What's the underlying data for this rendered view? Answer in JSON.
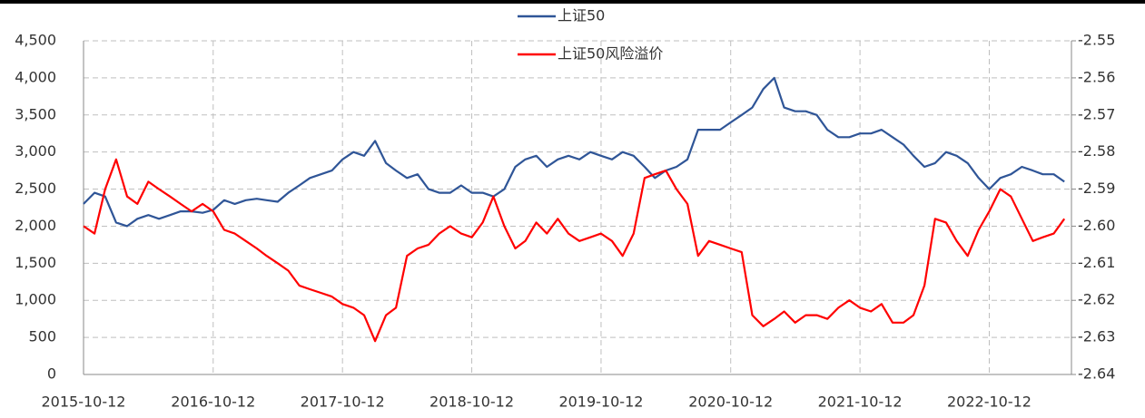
{
  "chart_data": {
    "type": "line",
    "x": [
      "2015-10-12",
      "2015-11-12",
      "2015-12-12",
      "2016-01-12",
      "2016-02-12",
      "2016-03-12",
      "2016-04-12",
      "2016-05-12",
      "2016-06-12",
      "2016-07-12",
      "2016-08-12",
      "2016-09-12",
      "2016-10-12",
      "2016-11-12",
      "2016-12-12",
      "2017-01-12",
      "2017-02-12",
      "2017-03-12",
      "2017-04-12",
      "2017-05-12",
      "2017-06-12",
      "2017-07-12",
      "2017-08-12",
      "2017-09-12",
      "2017-10-12",
      "2017-11-12",
      "2017-12-12",
      "2018-01-12",
      "2018-02-12",
      "2018-03-12",
      "2018-04-12",
      "2018-05-12",
      "2018-06-12",
      "2018-07-12",
      "2018-08-12",
      "2018-09-12",
      "2018-10-12",
      "2018-11-12",
      "2018-12-12",
      "2019-01-12",
      "2019-02-12",
      "2019-03-12",
      "2019-04-12",
      "2019-05-12",
      "2019-06-12",
      "2019-07-12",
      "2019-08-12",
      "2019-09-12",
      "2019-10-12",
      "2019-11-12",
      "2019-12-12",
      "2020-01-12",
      "2020-02-12",
      "2020-03-12",
      "2020-04-12",
      "2020-05-12",
      "2020-06-12",
      "2020-07-12",
      "2020-08-12",
      "2020-09-12",
      "2020-10-12",
      "2020-11-12",
      "2020-12-12",
      "2021-01-12",
      "2021-02-12",
      "2021-03-12",
      "2021-04-12",
      "2021-05-12",
      "2021-06-12",
      "2021-07-12",
      "2021-08-12",
      "2021-09-12",
      "2021-10-12",
      "2021-11-12",
      "2021-12-12",
      "2022-01-12",
      "2022-02-12",
      "2022-03-12",
      "2022-04-12",
      "2022-05-12",
      "2022-06-12",
      "2022-07-12",
      "2022-08-12",
      "2022-09-12",
      "2022-10-12",
      "2022-11-12",
      "2022-12-12",
      "2023-01-12",
      "2023-02-12",
      "2023-03-12",
      "2023-04-12",
      "2023-05-12"
    ],
    "xlim": [
      "2015-10-12",
      "2023-06-01"
    ],
    "xticks": [
      "2015-10-12",
      "2016-10-12",
      "2017-10-12",
      "2018-10-12",
      "2019-10-12",
      "2020-10-12",
      "2021-10-12",
      "2022-10-12"
    ],
    "ylim": [
      0,
      4500
    ],
    "yticks": [
      0,
      500,
      {
        "value": 1000,
        "label": "1,000"
      },
      {
        "value": 1500,
        "label": "1,500"
      },
      {
        "value": 2000,
        "label": "2,000"
      },
      {
        "value": 2500,
        "label": "2,500"
      },
      {
        "value": 3000,
        "label": "3,000"
      },
      {
        "value": 3500,
        "label": "3,500"
      },
      {
        "value": 4000,
        "label": "4,000"
      },
      {
        "value": 4500,
        "label": "4,500"
      }
    ],
    "y2lim": [
      -2.64,
      -2.55
    ],
    "y2ticks": [
      -2.64,
      -2.63,
      -2.62,
      -2.61,
      {
        "value": -2.6,
        "label": "-2.60"
      },
      -2.59,
      -2.58,
      -2.57,
      -2.56,
      -2.55
    ],
    "grid": true,
    "legend": "top",
    "series": [
      {
        "name": "上证50",
        "color": "#2f5597",
        "values": [
          2300,
          2450,
          2400,
          2050,
          2000,
          2100,
          2150,
          2100,
          2150,
          2200,
          2200,
          2180,
          2220,
          2350,
          2300,
          2350,
          2370,
          2350,
          2330,
          2450,
          2550,
          2650,
          2700,
          2750,
          2900,
          3000,
          2950,
          3150,
          2850,
          2750,
          2650,
          2700,
          2500,
          2450,
          2450,
          2550,
          2450,
          2450,
          2400,
          2500,
          2800,
          2900,
          2950,
          2800,
          2900,
          2950,
          2900,
          3000,
          2950,
          2900,
          3000,
          2950,
          2800,
          2650,
          2750,
          2800,
          2900,
          3300,
          3300,
          3300,
          3400,
          3500,
          3600,
          3850,
          4000,
          3600,
          3550,
          3550,
          3500,
          3300,
          3200,
          3200,
          3250,
          3250,
          3300,
          3200,
          3100,
          2950,
          2800,
          2850,
          3000,
          2950,
          2850,
          2650,
          2500,
          2650,
          2700,
          2800,
          2750,
          2700,
          2700,
          2600
        ]
      },
      {
        "name": "上证50风险溢价",
        "color": "#ff0000",
        "axis": "y2",
        "values": [
          -2.6,
          -2.602,
          -2.59,
          -2.582,
          -2.592,
          -2.594,
          -2.588,
          -2.59,
          -2.592,
          -2.594,
          -2.596,
          -2.594,
          -2.596,
          -2.601,
          -2.602,
          -2.604,
          -2.606,
          -2.608,
          -2.61,
          -2.612,
          -2.616,
          -2.617,
          -2.618,
          -2.619,
          -2.621,
          -2.622,
          -2.624,
          -2.631,
          -2.624,
          -2.622,
          -2.608,
          -2.606,
          -2.605,
          -2.602,
          -2.6,
          -2.602,
          -2.603,
          -2.599,
          -2.592,
          -2.6,
          -2.606,
          -2.604,
          -2.599,
          -2.602,
          -2.598,
          -2.602,
          -2.604,
          -2.603,
          -2.602,
          -2.604,
          -2.608,
          -2.602,
          -2.587,
          -2.586,
          -2.585,
          -2.59,
          -2.594,
          -2.608,
          -2.604,
          -2.605,
          -2.606,
          -2.607,
          -2.624,
          -2.627,
          -2.625,
          -2.623,
          -2.626,
          -2.624,
          -2.624,
          -2.625,
          -2.622,
          -2.62,
          -2.622,
          -2.623,
          -2.621,
          -2.626,
          -2.626,
          -2.624,
          -2.616,
          -2.598,
          -2.599,
          -2.604,
          -2.608,
          -2.601,
          -2.596,
          -2.59,
          -2.592,
          -2.598,
          -2.604,
          -2.603,
          -2.602,
          -2.598
        ]
      }
    ]
  }
}
